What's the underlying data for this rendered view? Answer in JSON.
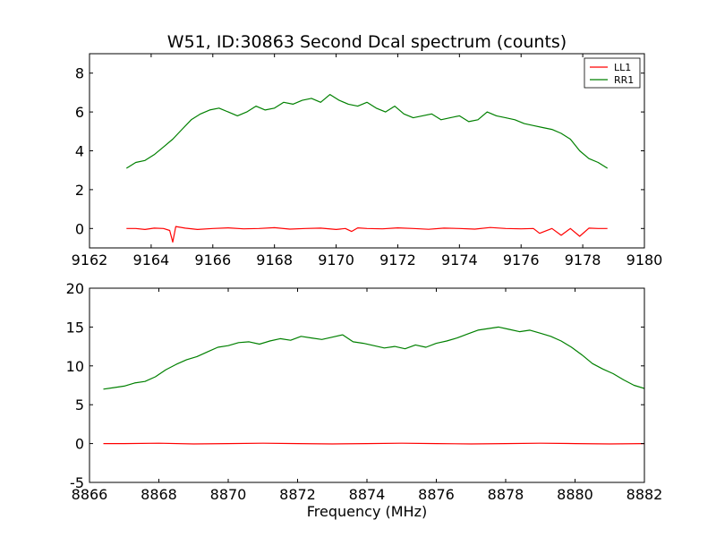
{
  "figure": {
    "title": "W51, ID:30863 Second Dcal spectrum (counts)",
    "xlabel": "Frequency (MHz)"
  },
  "chart_data": [
    {
      "type": "line",
      "title": "W51, ID:30863 Second Dcal spectrum (counts)",
      "xlabel": "",
      "ylabel": "",
      "xlim": [
        9162,
        9180
      ],
      "ylim": [
        -1,
        9
      ],
      "xticks": [
        9162,
        9164,
        9166,
        9168,
        9170,
        9172,
        9174,
        9176,
        9178,
        9180
      ],
      "yticks": [
        0,
        2,
        4,
        6,
        8
      ],
      "grid": false,
      "legend": "top-right",
      "series": [
        {
          "name": "LL1",
          "color": "#ff0000",
          "x": [
            9163.2,
            9163.5,
            9163.8,
            9164.1,
            9164.4,
            9164.6,
            9164.7,
            9164.8,
            9165.1,
            9165.5,
            9166.0,
            9166.5,
            9167.0,
            9167.5,
            9168.0,
            9168.5,
            9169.0,
            9169.5,
            9170.0,
            9170.3,
            9170.5,
            9170.7,
            9171.0,
            9171.5,
            9172.0,
            9172.5,
            9173.0,
            9173.5,
            9174.0,
            9174.5,
            9175.0,
            9175.5,
            9176.0,
            9176.4,
            9176.6,
            9177.0,
            9177.3,
            9177.6,
            9177.9,
            9178.2,
            9178.5,
            9178.8
          ],
          "y": [
            0.0,
            0.0,
            -0.05,
            0.02,
            0.0,
            -0.1,
            -0.7,
            0.1,
            0.02,
            -0.05,
            0.0,
            0.03,
            -0.02,
            0.0,
            0.04,
            -0.03,
            0.0,
            0.02,
            -0.05,
            0.0,
            -0.15,
            0.03,
            0.0,
            -0.02,
            0.03,
            0.0,
            -0.04,
            0.02,
            0.0,
            -0.03,
            0.05,
            0.0,
            -0.02,
            0.0,
            -0.25,
            0.0,
            -0.35,
            0.0,
            -0.4,
            0.02,
            0.0,
            0.0
          ]
        },
        {
          "name": "RR1",
          "color": "#008000",
          "x": [
            9163.2,
            9163.5,
            9163.8,
            9164.1,
            9164.4,
            9164.7,
            9165.0,
            9165.3,
            9165.6,
            9165.9,
            9166.2,
            9166.5,
            9166.8,
            9167.1,
            9167.4,
            9167.7,
            9168.0,
            9168.3,
            9168.6,
            9168.9,
            9169.2,
            9169.5,
            9169.8,
            9170.1,
            9170.4,
            9170.7,
            9171.0,
            9171.3,
            9171.6,
            9171.9,
            9172.2,
            9172.5,
            9172.8,
            9173.1,
            9173.4,
            9173.7,
            9174.0,
            9174.3,
            9174.6,
            9174.9,
            9175.2,
            9175.5,
            9175.8,
            9176.1,
            9176.4,
            9176.7,
            9177.0,
            9177.3,
            9177.6,
            9177.9,
            9178.2,
            9178.5,
            9178.8
          ],
          "y": [
            3.1,
            3.4,
            3.5,
            3.8,
            4.2,
            4.6,
            5.1,
            5.6,
            5.9,
            6.1,
            6.2,
            6.0,
            5.8,
            6.0,
            6.3,
            6.1,
            6.2,
            6.5,
            6.4,
            6.6,
            6.7,
            6.5,
            6.9,
            6.6,
            6.4,
            6.3,
            6.5,
            6.2,
            6.0,
            6.3,
            5.9,
            5.7,
            5.8,
            5.9,
            5.6,
            5.7,
            5.8,
            5.5,
            5.6,
            6.0,
            5.8,
            5.7,
            5.6,
            5.4,
            5.3,
            5.2,
            5.1,
            4.9,
            4.6,
            4.0,
            3.6,
            3.4,
            3.1
          ]
        }
      ]
    },
    {
      "type": "line",
      "title": "",
      "xlabel": "Frequency (MHz)",
      "ylabel": "",
      "xlim": [
        8866,
        8882
      ],
      "ylim": [
        -5,
        20
      ],
      "xticks": [
        8866,
        8868,
        8870,
        8872,
        8874,
        8876,
        8878,
        8880,
        8882
      ],
      "yticks": [
        -5,
        0,
        5,
        10,
        15,
        20
      ],
      "grid": false,
      "legend": "",
      "series": [
        {
          "name": "LL1",
          "color": "#ff0000",
          "x": [
            8866.4,
            8867.0,
            8868.0,
            8869.0,
            8870.0,
            8871.0,
            8872.0,
            8873.0,
            8874.0,
            8875.0,
            8876.0,
            8877.0,
            8878.0,
            8879.0,
            8880.0,
            8881.0,
            8882.0
          ],
          "y": [
            0.0,
            0.0,
            0.05,
            -0.05,
            0.0,
            0.05,
            0.0,
            -0.05,
            0.0,
            0.05,
            0.0,
            -0.05,
            0.0,
            0.05,
            0.0,
            -0.05,
            0.0
          ]
        },
        {
          "name": "RR1",
          "color": "#008000",
          "x": [
            8866.4,
            8866.7,
            8867.0,
            8867.3,
            8867.6,
            8867.9,
            8868.2,
            8868.5,
            8868.8,
            8869.1,
            8869.4,
            8869.7,
            8870.0,
            8870.3,
            8870.6,
            8870.9,
            8871.2,
            8871.5,
            8871.8,
            8872.1,
            8872.4,
            8872.7,
            8873.0,
            8873.3,
            8873.6,
            8873.9,
            8874.2,
            8874.5,
            8874.8,
            8875.1,
            8875.4,
            8875.7,
            8876.0,
            8876.3,
            8876.6,
            8876.9,
            8877.2,
            8877.5,
            8877.8,
            8878.1,
            8878.4,
            8878.7,
            8879.0,
            8879.3,
            8879.6,
            8879.9,
            8880.2,
            8880.5,
            8880.8,
            8881.1,
            8881.4,
            8881.7,
            8882.0
          ],
          "y": [
            7.0,
            7.2,
            7.4,
            7.8,
            8.0,
            8.6,
            9.5,
            10.2,
            10.8,
            11.2,
            11.8,
            12.4,
            12.6,
            13.0,
            13.1,
            12.8,
            13.2,
            13.5,
            13.3,
            13.8,
            13.6,
            13.4,
            13.7,
            14.0,
            13.1,
            12.9,
            12.6,
            12.3,
            12.5,
            12.2,
            12.7,
            12.4,
            12.9,
            13.2,
            13.6,
            14.1,
            14.6,
            14.8,
            15.0,
            14.7,
            14.4,
            14.6,
            14.2,
            13.8,
            13.2,
            12.4,
            11.4,
            10.3,
            9.6,
            9.0,
            8.2,
            7.5,
            7.1
          ]
        }
      ]
    }
  ]
}
